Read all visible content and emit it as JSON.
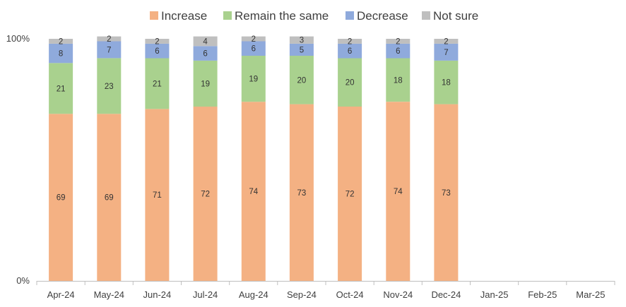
{
  "chart_data": {
    "type": "bar",
    "stacked": true,
    "categories": [
      "Apr-24",
      "May-24",
      "Jun-24",
      "Jul-24",
      "Aug-24",
      "Sep-24",
      "Oct-24",
      "Nov-24",
      "Dec-24",
      "Jan-25",
      "Feb-25",
      "Mar-25"
    ],
    "series": [
      {
        "name": "Increase",
        "color": "#F4B183",
        "values": [
          69,
          69,
          71,
          72,
          74,
          73,
          72,
          74,
          73,
          null,
          null,
          null
        ]
      },
      {
        "name": "Remain the same",
        "color": "#A9D18E",
        "values": [
          21,
          23,
          21,
          19,
          19,
          20,
          20,
          18,
          18,
          null,
          null,
          null
        ]
      },
      {
        "name": "Decrease",
        "color": "#8FAADC",
        "values": [
          8,
          7,
          6,
          6,
          6,
          5,
          6,
          6,
          7,
          null,
          null,
          null
        ]
      },
      {
        "name": "Not sure",
        "color": "#BFBFBF",
        "values": [
          2,
          2,
          2,
          4,
          2,
          3,
          2,
          2,
          2,
          null,
          null,
          null
        ]
      }
    ],
    "yticks": [
      "0%",
      "100%"
    ],
    "ylim": [
      0,
      100
    ],
    "legend_position": "top",
    "grid": false,
    "data_labels": true
  }
}
